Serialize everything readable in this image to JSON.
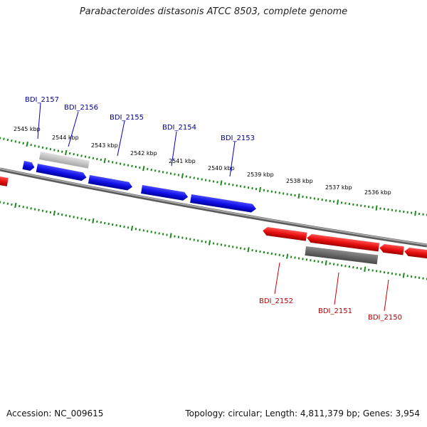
{
  "title": "Parabacteroides distasonis ATCC 8503, complete genome",
  "footer": {
    "accession": "Accession: NC_009615",
    "stats": "Topology: circular; Length: 4,811,379 bp; Genes: 3,954"
  },
  "colors": {
    "forward_gene": "#1010e8",
    "reverse_gene": "#e81010",
    "tick": "#1a8a1a",
    "backbone": "#808080",
    "forward_label": "#00008b",
    "reverse_label": "#b00000"
  },
  "scale_labels": [
    "2545 kbp",
    "2544 kbp",
    "2543 kbp",
    "2542 kbp",
    "2541 kbp",
    "2540 kbp",
    "2539 kbp",
    "2538 kbp",
    "2537 kbp",
    "2536 kbp"
  ],
  "forward_genes": [
    {
      "label": "BDI_2157"
    },
    {
      "label": "BDI_2156"
    },
    {
      "label": "BDI_2155"
    },
    {
      "label": "BDI_2154"
    },
    {
      "label": "BDI_2153"
    }
  ],
  "reverse_genes": [
    {
      "label": "BDI_2152"
    },
    {
      "label": "BDI_2151"
    },
    {
      "label": "BDI_2150"
    }
  ]
}
